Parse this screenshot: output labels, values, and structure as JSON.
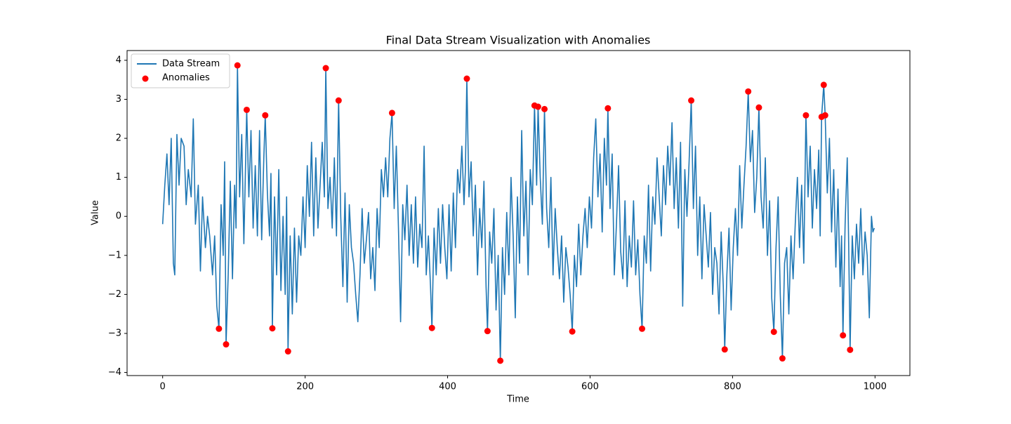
{
  "chart_data": {
    "type": "line",
    "title": "Final Data Stream Visualization with Anomalies",
    "x_label": "Time",
    "y_label": "Value",
    "xlim": [
      -49.95,
      1048.95
    ],
    "ylim": [
      -4.08,
      4.25
    ],
    "xticks": [
      0,
      200,
      400,
      600,
      800,
      1000
    ],
    "yticks": [
      {
        "value": -4,
        "label": "−4"
      },
      {
        "value": -3,
        "label": "−3"
      },
      {
        "value": -2,
        "label": "−2"
      },
      {
        "value": -1,
        "label": "−1"
      },
      0,
      1,
      2,
      3,
      4
    ],
    "legend": "upper left",
    "series": [
      {
        "name": "Data Stream",
        "kind": "line",
        "color": "#1f77b4",
        "x": [
          0,
          3,
          6,
          9,
          12,
          15,
          17,
          20,
          23,
          26,
          30,
          33,
          36,
          40,
          43,
          46,
          50,
          53,
          56,
          60,
          63,
          66,
          70,
          73,
          76,
          79,
          82,
          85,
          87,
          89,
          92,
          95,
          98,
          101,
          103,
          105,
          108,
          111,
          114,
          116,
          118,
          121,
          124,
          127,
          130,
          133,
          136,
          139,
          142,
          144,
          147,
          150,
          152,
          154,
          157,
          160,
          163,
          166,
          169,
          172,
          174,
          176,
          179,
          182,
          185,
          188,
          191,
          194,
          197,
          200,
          203,
          206,
          209,
          212,
          215,
          218,
          221,
          224,
          227,
          229,
          232,
          235,
          238,
          241,
          244,
          247,
          250,
          253,
          256,
          259,
          262,
          265,
          268,
          271,
          274,
          277,
          280,
          283,
          286,
          289,
          292,
          295,
          298,
          301,
          304,
          307,
          310,
          313,
          316,
          319,
          322,
          325,
          328,
          331,
          334,
          337,
          340,
          343,
          346,
          349,
          352,
          355,
          358,
          361,
          364,
          367,
          370,
          373,
          376,
          378,
          381,
          384,
          387,
          390,
          393,
          396,
          399,
          402,
          405,
          408,
          411,
          414,
          417,
          420,
          423,
          425,
          427,
          430,
          433,
          436,
          439,
          442,
          445,
          448,
          451,
          454,
          456,
          459,
          462,
          465,
          468,
          471,
          474,
          477,
          480,
          483,
          486,
          489,
          492,
          495,
          498,
          501,
          504,
          507,
          510,
          513,
          516,
          519,
          522,
          525,
          527,
          530,
          533,
          536,
          539,
          542,
          545,
          548,
          551,
          554,
          557,
          560,
          563,
          566,
          569,
          572,
          575,
          578,
          581,
          584,
          587,
          590,
          593,
          596,
          599,
          602,
          605,
          608,
          611,
          614,
          617,
          620,
          623,
          625,
          628,
          631,
          634,
          637,
          640,
          643,
          646,
          649,
          652,
          655,
          658,
          661,
          664,
          667,
          670,
          673,
          676,
          679,
          682,
          685,
          688,
          691,
          694,
          697,
          700,
          703,
          706,
          709,
          712,
          715,
          718,
          721,
          724,
          727,
          730,
          733,
          736,
          739,
          742,
          745,
          748,
          751,
          754,
          757,
          760,
          763,
          766,
          769,
          772,
          775,
          778,
          781,
          784,
          787,
          789,
          792,
          795,
          798,
          801,
          804,
          807,
          810,
          813,
          816,
          819,
          822,
          825,
          828,
          831,
          834,
          837,
          840,
          843,
          846,
          849,
          852,
          855,
          858,
          861,
          864,
          867,
          870,
          873,
          876,
          879,
          882,
          885,
          888,
          891,
          894,
          897,
          900,
          903,
          906,
          909,
          912,
          915,
          918,
          921,
          923,
          925,
          928,
          930,
          933,
          936,
          939,
          942,
          945,
          948,
          951,
          953,
          955,
          958,
          961,
          963,
          965,
          968,
          971,
          974,
          977,
          980,
          983,
          986,
          989,
          992,
          995,
          997,
          999
        ],
        "values": [
          -0.2,
          0.8,
          1.6,
          0.3,
          2.0,
          -1.2,
          -1.5,
          2.1,
          0.8,
          2.0,
          1.8,
          0.3,
          1.2,
          0.5,
          2.5,
          -0.2,
          0.8,
          -1.4,
          0.5,
          -0.8,
          0.0,
          -0.5,
          -1.5,
          -0.5,
          -2.3,
          -2.88,
          0.3,
          -1.0,
          1.4,
          -3.28,
          -1.5,
          0.9,
          -1.6,
          0.8,
          -0.3,
          3.87,
          0.5,
          2.1,
          -0.7,
          1.0,
          2.73,
          0.5,
          2.2,
          -0.3,
          1.3,
          -0.5,
          2.2,
          -0.6,
          1.5,
          2.59,
          0.6,
          -0.5,
          1.1,
          -2.87,
          0.5,
          -1.5,
          1.2,
          -1.9,
          0.0,
          -2.0,
          0.5,
          -3.46,
          -0.5,
          -2.5,
          -0.3,
          -2.2,
          -0.5,
          -1.0,
          0.5,
          -0.8,
          1.3,
          0.0,
          1.9,
          -0.5,
          1.5,
          -0.3,
          0.8,
          1.9,
          0.5,
          3.8,
          0.2,
          1.0,
          -0.3,
          1.5,
          -0.5,
          2.97,
          0.0,
          -1.8,
          0.6,
          -2.2,
          0.3,
          -0.8,
          -1.2,
          -2.0,
          -2.7,
          -1.5,
          0.2,
          -1.2,
          -0.6,
          0.1,
          -1.6,
          -0.8,
          -1.9,
          0.2,
          -0.8,
          1.2,
          0.5,
          1.5,
          0.5,
          2.0,
          2.65,
          0.2,
          1.8,
          -0.3,
          -2.7,
          0.3,
          -0.6,
          0.8,
          -1.0,
          0.3,
          -1.2,
          0.5,
          -1.3,
          -0.2,
          -0.8,
          1.8,
          -1.5,
          -0.5,
          -1.8,
          -2.86,
          -0.3,
          -1.5,
          0.2,
          -1.2,
          0.3,
          -0.8,
          -1.6,
          0.3,
          -1.4,
          0.6,
          -0.8,
          1.2,
          0.6,
          1.8,
          0.3,
          1.2,
          3.53,
          0.5,
          1.4,
          -0.5,
          0.8,
          -1.5,
          0.2,
          -0.8,
          0.9,
          -1.8,
          -2.94,
          -0.4,
          -1.2,
          0.2,
          -2.4,
          -1.0,
          -3.7,
          -0.8,
          -2.0,
          0.1,
          -1.5,
          1.0,
          -0.5,
          -2.6,
          0.5,
          -1.2,
          2.2,
          -0.5,
          0.9,
          -1.5,
          1.2,
          0.3,
          2.84,
          0.8,
          2.81,
          1.0,
          -0.2,
          2.75,
          0.2,
          -0.8,
          1.0,
          -1.5,
          0.2,
          -0.8,
          -1.6,
          -0.5,
          -2.2,
          -0.8,
          -1.3,
          -2.0,
          -2.95,
          -1.0,
          -1.8,
          -0.2,
          -1.5,
          -0.5,
          0.2,
          -0.8,
          0.5,
          -0.3,
          1.5,
          2.5,
          0.5,
          1.6,
          -0.4,
          2.0,
          0.8,
          2.77,
          0.2,
          1.6,
          -1.5,
          -0.2,
          1.3,
          -0.9,
          -1.6,
          0.4,
          -1.8,
          -0.5,
          -1.3,
          0.4,
          -1.5,
          -0.6,
          -2.0,
          -2.88,
          -0.5,
          -1.2,
          0.8,
          -1.4,
          0.5,
          -0.2,
          1.5,
          0.5,
          -0.5,
          1.3,
          0.3,
          1.8,
          0.8,
          2.4,
          0.2,
          1.5,
          -0.3,
          1.9,
          -2.3,
          1.2,
          0.0,
          1.4,
          2.97,
          0.2,
          1.8,
          -1.0,
          0.5,
          -1.6,
          0.3,
          -0.5,
          -1.3,
          0.1,
          -2.0,
          -0.8,
          -1.2,
          -2.5,
          -0.4,
          -1.8,
          -3.41,
          -1.5,
          -0.3,
          -2.4,
          -0.8,
          0.2,
          -1.0,
          1.3,
          -0.3,
          0.8,
          1.8,
          3.2,
          1.4,
          2.2,
          0.1,
          1.0,
          2.79,
          0.5,
          -0.3,
          1.5,
          -1.0,
          0.4,
          -2.1,
          -2.96,
          -0.8,
          0.5,
          -2.0,
          -3.64,
          -1.2,
          -0.8,
          -2.5,
          -0.5,
          -1.6,
          -0.2,
          1.0,
          -0.8,
          0.8,
          -1.2,
          2.59,
          0.5,
          1.8,
          -0.3,
          1.2,
          0.2,
          1.7,
          -0.5,
          2.55,
          3.37,
          2.59,
          0.6,
          2.0,
          -0.4,
          1.2,
          -1.3,
          0.7,
          -1.8,
          -0.5,
          -3.05,
          -0.2,
          1.5,
          -0.7,
          -3.42,
          -0.5,
          -1.6,
          -0.2,
          -1.2,
          0.2,
          -1.5,
          -0.4,
          -1.0,
          -2.6,
          0.0,
          -0.4,
          -0.3
        ]
      },
      {
        "name": "Anomalies",
        "kind": "scatter",
        "color": "#ff0000",
        "x": [
          79,
          89,
          105,
          118,
          144,
          154,
          176,
          229,
          247,
          322,
          378,
          427,
          456,
          474,
          522,
          527,
          536,
          575,
          625,
          673,
          742,
          789,
          822,
          837,
          858,
          870,
          903,
          925,
          928,
          930,
          955,
          965
        ],
        "values": [
          -2.88,
          -3.28,
          3.87,
          2.73,
          2.59,
          -2.87,
          -3.46,
          3.8,
          2.97,
          2.65,
          -2.86,
          3.53,
          -2.94,
          -3.7,
          2.84,
          2.81,
          2.75,
          -2.95,
          2.77,
          -2.88,
          2.97,
          -3.41,
          3.2,
          2.79,
          -2.96,
          -3.64,
          2.59,
          2.55,
          3.37,
          2.59,
          -3.05,
          -3.42
        ]
      }
    ]
  }
}
